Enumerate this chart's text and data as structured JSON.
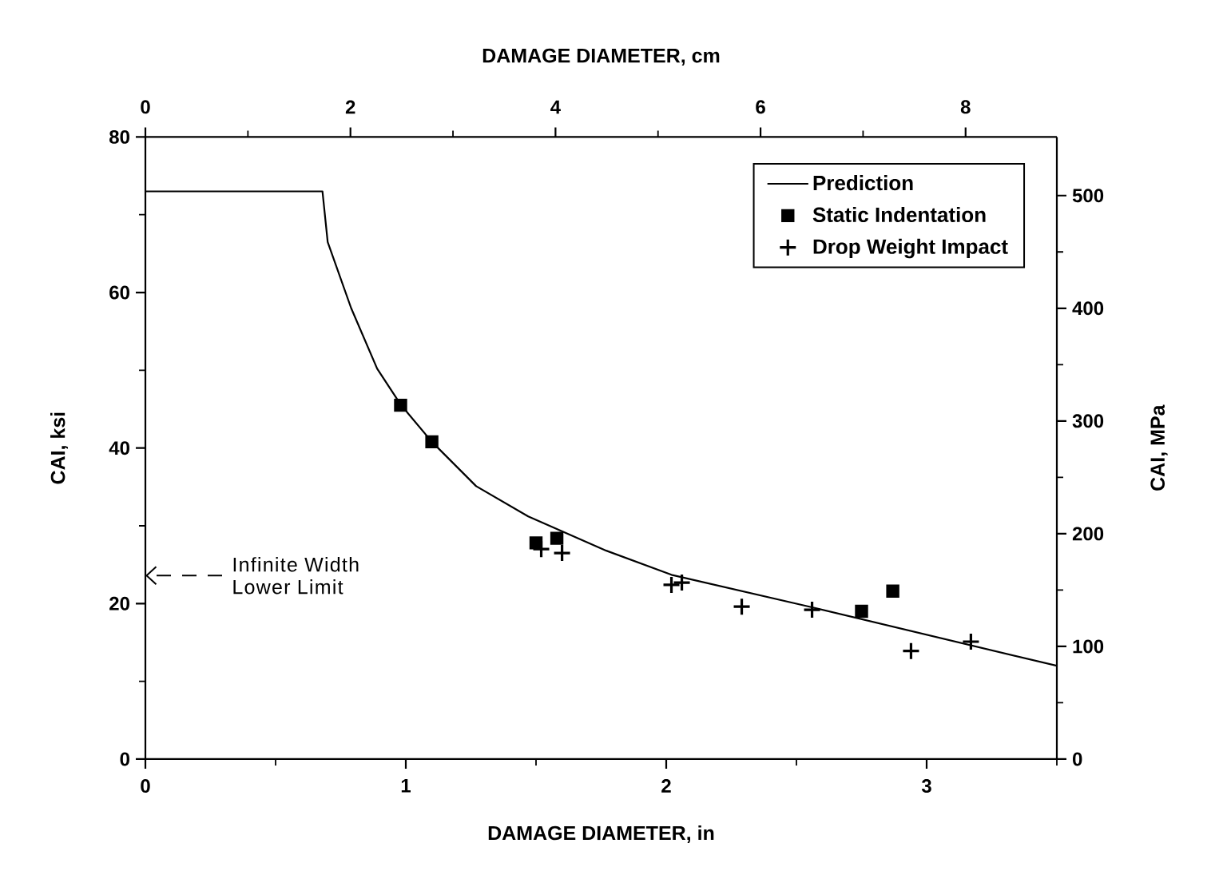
{
  "chart_data": {
    "type": "scatter",
    "xlabel": "DAMAGE DIAMETER, in",
    "ylabel": "CAI, ksi",
    "x2label": "DAMAGE DIAMETER, cm",
    "y2label": "CAI, MPa",
    "xlim": [
      0,
      3.5
    ],
    "ylim": [
      0,
      80
    ],
    "x2lim": [
      0,
      8.89
    ],
    "y2lim": [
      0,
      552
    ],
    "xticks": [
      0,
      {
        "value": 0.5,
        "label": null
      },
      1,
      {
        "value": 1.5,
        "label": null
      },
      2,
      {
        "value": 2.5,
        "label": null
      },
      3,
      {
        "value": 3.5,
        "label": null
      }
    ],
    "yticks": [
      0,
      {
        "value": 10,
        "label": null
      },
      20,
      {
        "value": 30,
        "label": null
      },
      40,
      {
        "value": 50,
        "label": null
      },
      60,
      {
        "value": 70,
        "label": null
      },
      80
    ],
    "x2ticks": [
      0,
      {
        "value": 1,
        "label": null
      },
      2,
      {
        "value": 3,
        "label": null
      },
      4,
      {
        "value": 5,
        "label": null
      },
      6,
      {
        "value": 7,
        "label": null
      },
      8
    ],
    "y2ticks": [
      0,
      {
        "value": 50,
        "label": null
      },
      100,
      {
        "value": 150,
        "label": null
      },
      200,
      {
        "value": 250,
        "label": null
      },
      300,
      {
        "value": 350,
        "label": null
      },
      400,
      {
        "value": 450,
        "label": null
      },
      500
    ],
    "series": [
      {
        "name": "Prediction",
        "type": "line",
        "color": "#000000",
        "x": [
          0,
          0.68,
          0.7,
          0.79,
          0.89,
          0.98,
          1.1,
          1.27,
          1.47,
          1.77,
          2.02,
          2.55,
          3.5
        ],
        "values": [
          73,
          73,
          66.5,
          58,
          50.2,
          45.6,
          40.8,
          35.1,
          31.2,
          26.8,
          23.7,
          19.6,
          12
        ]
      },
      {
        "name": "Static Indentation",
        "color": "#000000",
        "marker": "square",
        "x": [
          0.98,
          1.1,
          1.5,
          1.58,
          2.75,
          2.87
        ],
        "values": [
          45.5,
          40.8,
          27.8,
          28.4,
          19,
          21.6
        ]
      },
      {
        "name": "Drop Weight Impact",
        "color": "#000000",
        "marker": "cross",
        "x": [
          1.52,
          1.6,
          2.02,
          2.06,
          2.29,
          2.56,
          2.94,
          3.17
        ],
        "values": [
          27,
          26.5,
          22.4,
          22.7,
          19.6,
          19.2,
          13.9,
          15.1
        ]
      }
    ],
    "legend": "top right",
    "ref_lines": [
      {
        "axis": "y",
        "value": 23.6,
        "label": "Infinite Width Lower Limit",
        "color": "#000000",
        "line_style": "dashed"
      }
    ]
  }
}
